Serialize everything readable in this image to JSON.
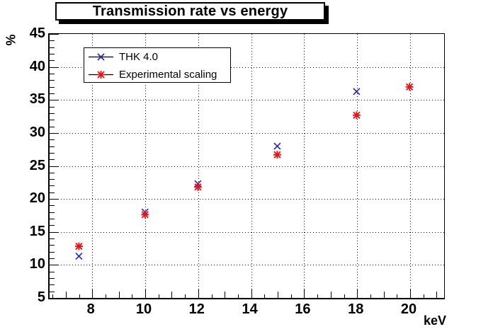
{
  "chart_data": {
    "type": "scatter",
    "title": "Transmission rate vs energy",
    "xlabel": "keV",
    "ylabel": "%",
    "xlim": [
      6.39,
      21.31
    ],
    "ylim": [
      5,
      45
    ],
    "x_major_ticks": [
      8,
      10,
      12,
      14,
      16,
      18,
      20
    ],
    "x_minor_step": 0.5,
    "y_major_ticks": [
      5,
      10,
      15,
      20,
      25,
      30,
      35,
      40,
      45
    ],
    "y_minor_step": 1,
    "grid": "dotted",
    "legend_position": "top-left",
    "frame_color": "#000000",
    "background_color": "#ffffff",
    "series": [
      {
        "name": "THK 4.0",
        "marker": "x-cross",
        "color": "#2222cc",
        "x": [
          7.5,
          10,
          12,
          15,
          18
        ],
        "y": [
          11.3,
          18.0,
          22.3,
          28.0,
          36.3
        ]
      },
      {
        "name": "Experimental scaling",
        "marker": "asterisk",
        "color": "#ee1111",
        "x": [
          7.5,
          10,
          12,
          15,
          18,
          20
        ],
        "y": [
          12.8,
          17.6,
          21.8,
          26.7,
          32.7,
          37.0
        ]
      }
    ]
  }
}
